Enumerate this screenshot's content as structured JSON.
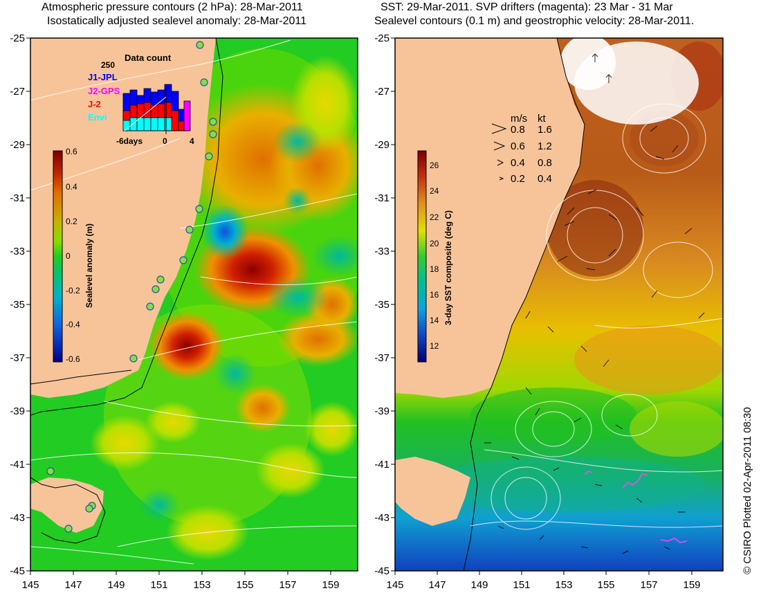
{
  "titles": {
    "left_line1": "Atmospheric pressure contours (2 hPa): 28-Mar-2011",
    "left_line2": "Isostatically adjusted sealevel anomaly: 28-Mar-2011",
    "right_line1": "SST: 29-Mar-2011. SVP drifters (magenta): 23 Mar - 31 Mar",
    "right_line2": "Sealevel contours (0.1 m) and geostrophic velocity: 28-Mar-2011."
  },
  "axes": {
    "lat_labels": [
      "-25",
      "-27",
      "-29",
      "-31",
      "-33",
      "-35",
      "-37",
      "-39",
      "-41",
      "-43",
      "-45"
    ],
    "lon_labels": [
      "145",
      "147",
      "149",
      "151",
      "153",
      "155",
      "157",
      "159"
    ]
  },
  "colorbars": {
    "sla": {
      "label": "Sealevel anomaly (m)",
      "ticks": [
        "0.6",
        "0.4",
        "0.2",
        "0",
        "-0.2",
        "-0.4",
        "-0.6"
      ]
    },
    "sst": {
      "label": "3-day SST composite (deg C)",
      "ticks": [
        "26",
        "24",
        "22",
        "20",
        "18",
        "16",
        "14",
        "12"
      ]
    }
  },
  "data_count": {
    "title": "Data count",
    "max_label": "250",
    "missions": [
      {
        "name": "J1-JPL",
        "color": "#0000ff"
      },
      {
        "name": "J2-GPS",
        "color": "#ff00ff"
      },
      {
        "name": "J-2",
        "color": "#ff0000"
      },
      {
        "name": "Envi",
        "color": "#00ffff"
      }
    ],
    "xaxis_labels": [
      "-6days",
      "0",
      "4"
    ]
  },
  "velocity_legend": {
    "header_ms": "m/s",
    "header_kt": "kt",
    "rows": [
      {
        "ms": "0.8",
        "kt": "1.6"
      },
      {
        "ms": "0.6",
        "kt": "1.2"
      },
      {
        "ms": "0.4",
        "kt": "0.8"
      },
      {
        "ms": "0.2",
        "kt": "0.4"
      }
    ]
  },
  "credit": "© CSIRO Plotted 02-Apr-2011 08:30",
  "colors": {
    "land": "#f7c49a",
    "sla_green": "#22cc22",
    "sst_orange": "#d87018"
  }
}
